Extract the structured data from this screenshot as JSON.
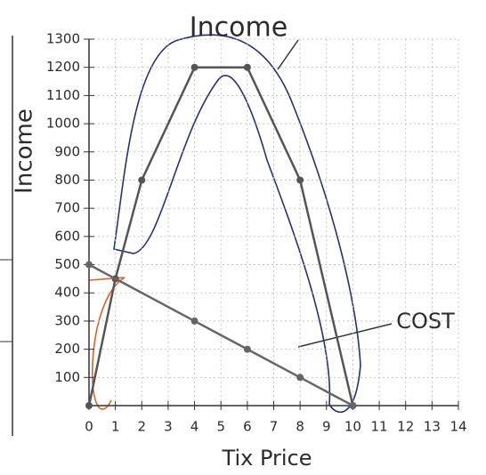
{
  "chart_data": {
    "type": "line",
    "xlabel": "Tix Price",
    "ylabel": "Income",
    "xlim": [
      0,
      14
    ],
    "ylim": [
      0,
      1300
    ],
    "xticks": [
      0,
      1,
      2,
      3,
      4,
      5,
      6,
      7,
      8,
      9,
      10,
      11,
      12,
      13,
      14
    ],
    "yticks": [
      100,
      200,
      300,
      400,
      500,
      600,
      700,
      800,
      900,
      1000,
      1100,
      1200,
      1300
    ],
    "grid": true,
    "series": [
      {
        "name": "Income",
        "color": "#555555",
        "x": [
          0,
          1,
          2,
          4,
          6,
          8,
          10
        ],
        "values": [
          0,
          450,
          800,
          1200,
          1200,
          800,
          0
        ]
      },
      {
        "name": "COST",
        "color": "#666666",
        "x": [
          0,
          4,
          6,
          8,
          10
        ],
        "values": [
          500,
          300,
          200,
          100,
          0
        ]
      }
    ]
  }
}
